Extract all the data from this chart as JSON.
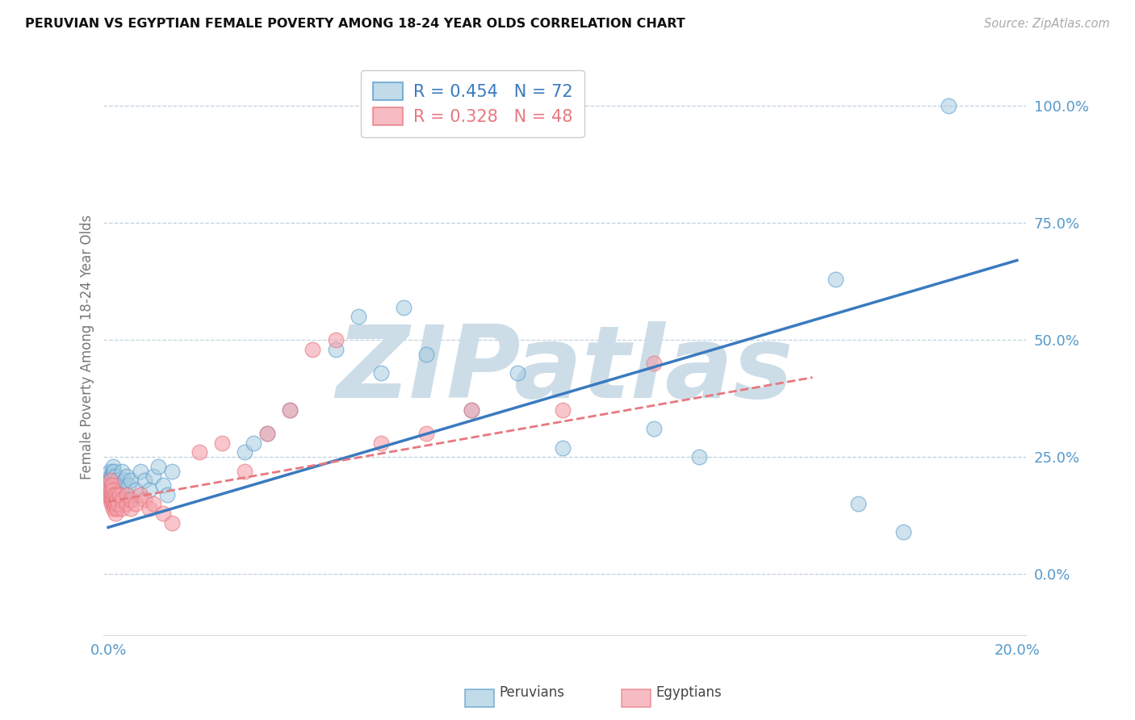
{
  "title": "PERUVIAN VS EGYPTIAN FEMALE POVERTY AMONG 18-24 YEAR OLDS CORRELATION CHART",
  "source": "Source: ZipAtlas.com",
  "ylabel": "Female Poverty Among 18-24 Year Olds",
  "xlim": [
    -0.001,
    0.202
  ],
  "ylim": [
    -0.13,
    1.1
  ],
  "yticks": [
    0.0,
    0.25,
    0.5,
    0.75,
    1.0
  ],
  "ytick_labels": [
    "0.0%",
    "25.0%",
    "50.0%",
    "75.0%",
    "100.0%"
  ],
  "xticks": [
    0.0,
    0.05,
    0.1,
    0.15,
    0.2
  ],
  "xtick_labels": [
    "0.0%",
    "",
    "",
    "",
    "20.0%"
  ],
  "peru_R": 0.454,
  "peru_N": 72,
  "egypt_R": 0.328,
  "egypt_N": 48,
  "peru_color": "#a8cce0",
  "egypt_color": "#f4a0aa",
  "peru_line_color": "#3a7abf",
  "egypt_line_color": "#e87880",
  "peru_edge_color": "#5599cc",
  "egypt_edge_color": "#e87880",
  "watermark": "ZIPatlas",
  "watermark_color": "#ccdde8",
  "legend_peru_label": "Peruvians",
  "legend_egypt_label": "Egyptians",
  "peru_line_x0": 0.0,
  "peru_line_y0": 0.1,
  "peru_line_x1": 0.2,
  "peru_line_y1": 0.67,
  "egypt_line_x0": 0.0,
  "egypt_line_y0": 0.155,
  "egypt_line_x1": 0.155,
  "egypt_line_y1": 0.42,
  "peru_points_x": [
    0.0002,
    0.0003,
    0.0004,
    0.0004,
    0.0005,
    0.0005,
    0.0006,
    0.0006,
    0.0007,
    0.0007,
    0.0008,
    0.0008,
    0.0008,
    0.0009,
    0.0009,
    0.001,
    0.001,
    0.001,
    0.001,
    0.001,
    0.0012,
    0.0012,
    0.0013,
    0.0013,
    0.0014,
    0.0014,
    0.0015,
    0.0015,
    0.0016,
    0.0016,
    0.0017,
    0.0018,
    0.002,
    0.002,
    0.002,
    0.0022,
    0.0025,
    0.003,
    0.003,
    0.0035,
    0.004,
    0.004,
    0.0045,
    0.005,
    0.005,
    0.006,
    0.007,
    0.008,
    0.009,
    0.01,
    0.011,
    0.012,
    0.013,
    0.014,
    0.03,
    0.032,
    0.035,
    0.04,
    0.05,
    0.055,
    0.06,
    0.065,
    0.07,
    0.08,
    0.09,
    0.1,
    0.12,
    0.13,
    0.16,
    0.165,
    0.175,
    0.185
  ],
  "peru_points_y": [
    0.18,
    0.2,
    0.19,
    0.22,
    0.17,
    0.21,
    0.18,
    0.2,
    0.16,
    0.19,
    0.17,
    0.2,
    0.22,
    0.18,
    0.21,
    0.15,
    0.17,
    0.19,
    0.21,
    0.23,
    0.16,
    0.2,
    0.18,
    0.22,
    0.17,
    0.19,
    0.16,
    0.2,
    0.18,
    0.21,
    0.19,
    0.17,
    0.15,
    0.18,
    0.2,
    0.17,
    0.16,
    0.19,
    0.22,
    0.2,
    0.17,
    0.21,
    0.19,
    0.16,
    0.2,
    0.18,
    0.22,
    0.2,
    0.18,
    0.21,
    0.23,
    0.19,
    0.17,
    0.22,
    0.26,
    0.28,
    0.3,
    0.35,
    0.48,
    0.55,
    0.43,
    0.57,
    0.47,
    0.35,
    0.43,
    0.27,
    0.31,
    0.25,
    0.63,
    0.15,
    0.09,
    1.0
  ],
  "egypt_points_x": [
    0.0003,
    0.0004,
    0.0005,
    0.0006,
    0.0006,
    0.0007,
    0.0007,
    0.0008,
    0.0009,
    0.001,
    0.001,
    0.0011,
    0.0012,
    0.0013,
    0.0014,
    0.0015,
    0.0015,
    0.0016,
    0.0017,
    0.002,
    0.002,
    0.0022,
    0.0025,
    0.003,
    0.003,
    0.004,
    0.004,
    0.005,
    0.005,
    0.006,
    0.007,
    0.008,
    0.009,
    0.01,
    0.012,
    0.014,
    0.02,
    0.025,
    0.03,
    0.035,
    0.04,
    0.045,
    0.05,
    0.06,
    0.07,
    0.08,
    0.1,
    0.12
  ],
  "egypt_points_y": [
    0.17,
    0.19,
    0.16,
    0.18,
    0.2,
    0.15,
    0.17,
    0.19,
    0.16,
    0.14,
    0.18,
    0.16,
    0.17,
    0.15,
    0.14,
    0.13,
    0.16,
    0.15,
    0.17,
    0.14,
    0.16,
    0.15,
    0.17,
    0.16,
    0.14,
    0.15,
    0.17,
    0.14,
    0.16,
    0.15,
    0.17,
    0.16,
    0.14,
    0.15,
    0.13,
    0.11,
    0.26,
    0.28,
    0.22,
    0.3,
    0.35,
    0.48,
    0.5,
    0.28,
    0.3,
    0.35,
    0.35,
    0.45
  ]
}
